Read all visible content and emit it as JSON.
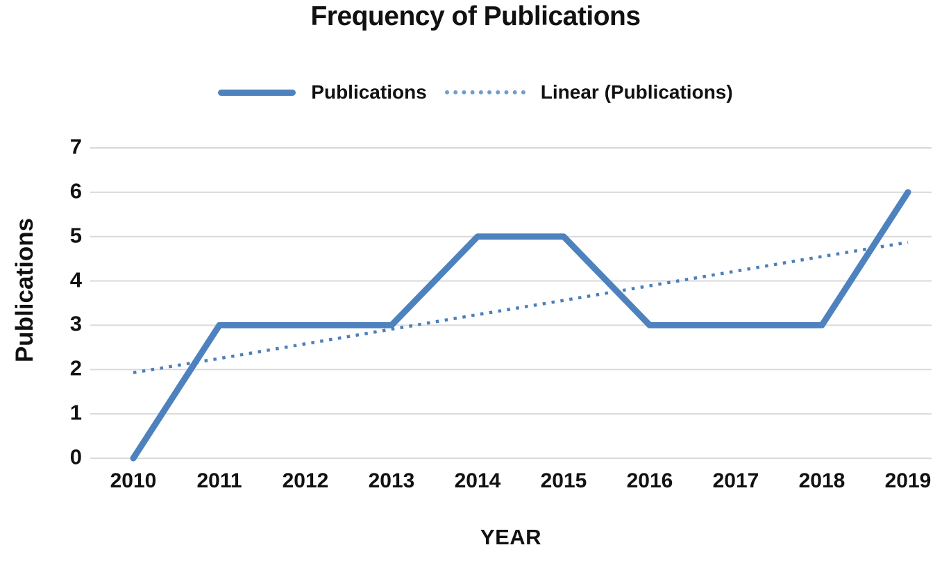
{
  "chart_data": {
    "type": "line",
    "title": "Frequency of Publications",
    "xlabel": "YEAR",
    "ylabel": "Publications",
    "categories": [
      "2010",
      "2011",
      "2012",
      "2013",
      "2014",
      "2015",
      "2016",
      "2017",
      "2018",
      "2019"
    ],
    "series": [
      {
        "name": "Publications",
        "line_style": "solid",
        "values": [
          0,
          3,
          3,
          3,
          5,
          5,
          3,
          3,
          3,
          6
        ]
      },
      {
        "name": "Linear (Publications)",
        "line_style": "dotted",
        "values": [
          1.93,
          2.25,
          2.58,
          2.91,
          3.24,
          3.56,
          3.89,
          4.22,
          4.55,
          4.87
        ]
      }
    ],
    "y_ticks": [
      0,
      1,
      2,
      3,
      4,
      5,
      6,
      7
    ],
    "ylim": [
      0,
      7
    ],
    "grid": "horizontal",
    "legend_position": "top",
    "colors": {
      "publications_line": "#4d82be",
      "trend_line": "#4c7fba",
      "legend_dotted": "#6f9dcc",
      "gridline": "#d9d9d9",
      "text": "#111111"
    }
  }
}
